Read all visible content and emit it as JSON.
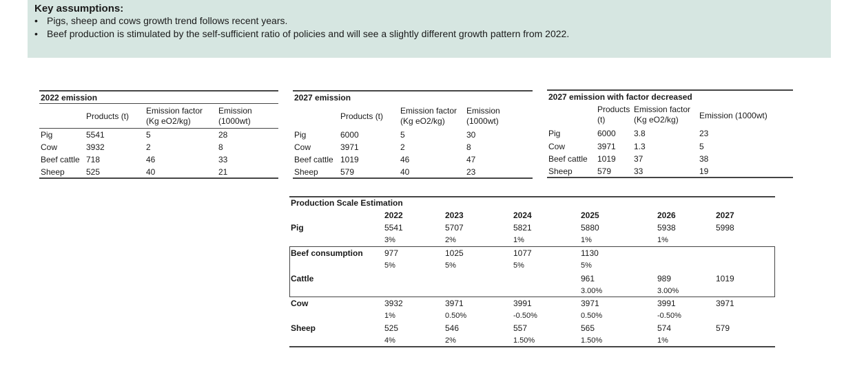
{
  "assumptions": {
    "title": "Key assumptions:",
    "bullets": [
      "Pigs, sheep and cows growth trend follows recent years.",
      "Beef production is stimulated by the self-sufficient ratio of policies and will see a slightly different growth pattern from 2022."
    ]
  },
  "tables": [
    {
      "title": "2022 emission",
      "headers": [
        "Products (t)",
        "Emission factor (Kg eO2/kg)",
        "Emission (1000wt)"
      ],
      "rows": [
        {
          "name": "Pig",
          "products": "5541",
          "factor": "5",
          "emission": "28"
        },
        {
          "name": "Cow",
          "products": "3932",
          "factor": "2",
          "emission": "8"
        },
        {
          "name": "Beef cattle",
          "products": "718",
          "factor": "46",
          "emission": "33"
        },
        {
          "name": "Sheep",
          "products": "525",
          "factor": "40",
          "emission": "21"
        }
      ]
    },
    {
      "title": "2027 emission",
      "headers": [
        "Products (t)",
        "Emission factor (Kg eO2/kg)",
        "Emission (1000wt)"
      ],
      "rows": [
        {
          "name": "Pig",
          "products": "6000",
          "factor": "5",
          "emission": "30"
        },
        {
          "name": "Cow",
          "products": "3971",
          "factor": "2",
          "emission": "8"
        },
        {
          "name": "Beef cattle",
          "products": "1019",
          "factor": "46",
          "emission": "47"
        },
        {
          "name": "Sheep",
          "products": "579",
          "factor": "40",
          "emission": "23"
        }
      ]
    },
    {
      "title": "2027 emission with factor decreased",
      "headers": [
        "Products (t)",
        "Emission factor (Kg eO2/kg)",
        "Emission (1000wt)"
      ],
      "rows": [
        {
          "name": "Pig",
          "products": "6000",
          "factor": "3.8",
          "emission": "23"
        },
        {
          "name": "Cow",
          "products": "3971",
          "factor": "1.3",
          "emission": "5"
        },
        {
          "name": "Beef cattle",
          "products": "1019",
          "factor": "37",
          "emission": "38"
        },
        {
          "name": "Sheep",
          "products": "579",
          "factor": "33",
          "emission": "19"
        }
      ]
    }
  ],
  "production": {
    "title": "Production Scale Estimation",
    "years": [
      "2022",
      "2023",
      "2024",
      "2025",
      "2026",
      "2027"
    ],
    "rows": [
      {
        "label": "Pig",
        "values": [
          "5541",
          "5707",
          "5821",
          "5880",
          "5938",
          "5998"
        ],
        "pcts": [
          "3%",
          "2%",
          "1%",
          "1%",
          "1%",
          ""
        ]
      },
      {
        "label": "Beef consumption",
        "values": [
          "977",
          "1025",
          "1077",
          "1130",
          "",
          ""
        ],
        "pcts": [
          "5%",
          "5%",
          "5%",
          "5%",
          "",
          ""
        ]
      },
      {
        "label": "Cattle",
        "values": [
          "",
          "",
          "",
          "961",
          "989",
          "1019"
        ],
        "pcts": [
          "",
          "",
          "",
          "3.00%",
          "3.00%",
          ""
        ]
      },
      {
        "label": "Cow",
        "values": [
          "3932",
          "3971",
          "3991",
          "3971",
          "3991",
          "3971"
        ],
        "pcts": [
          "1%",
          "0.50%",
          "-0.50%",
          "0.50%",
          "-0.50%",
          ""
        ]
      },
      {
        "label": "Sheep",
        "values": [
          "525",
          "546",
          "557",
          "565",
          "574",
          "579"
        ],
        "pcts": [
          "4%",
          "2%",
          "1.50%",
          "1.50%",
          "1%",
          ""
        ]
      }
    ]
  }
}
